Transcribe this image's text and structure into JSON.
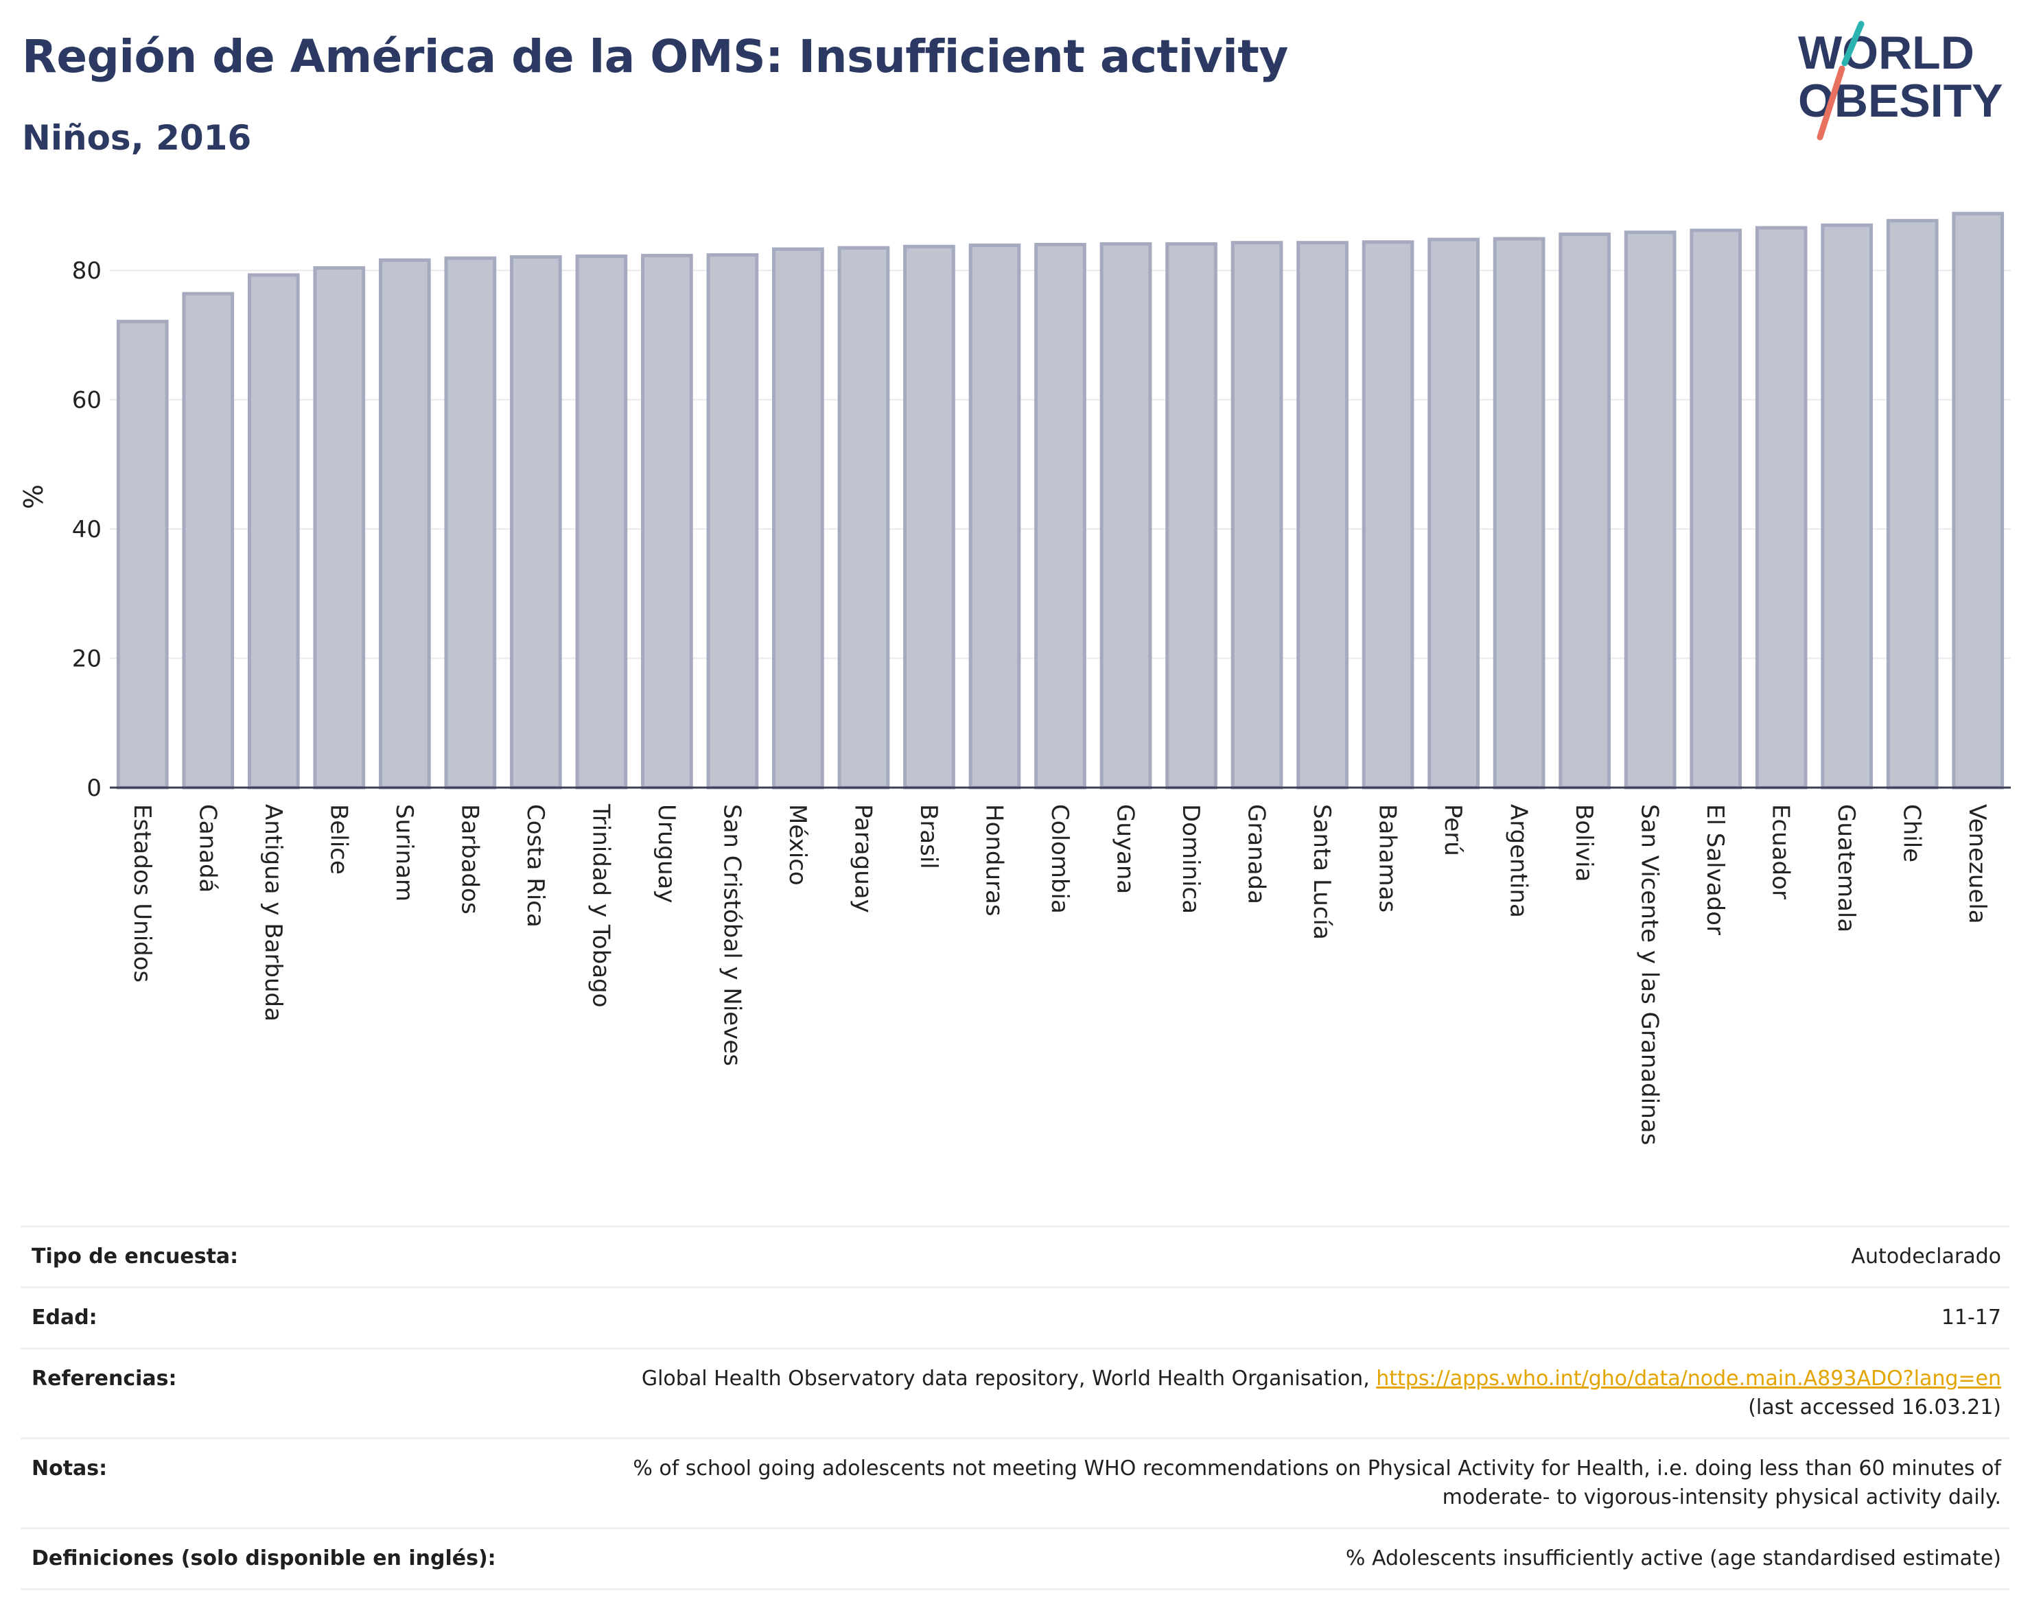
{
  "header": {
    "title": "Región de América de la OMS: Insufficient activity",
    "subtitle": "Niños, 2016"
  },
  "logo": {
    "line1": "WORLD",
    "line2": "OBESITY",
    "accent_colors": [
      "#2ab3b0",
      "#e8705e"
    ],
    "text_color": "#2c3a63"
  },
  "chart_data": {
    "type": "bar",
    "title": "",
    "xlabel": "",
    "ylabel": "%",
    "ylim": [
      0,
      90
    ],
    "yticks": [
      0,
      20,
      40,
      60,
      80
    ],
    "grid": true,
    "bar_color": "#c0c4d0",
    "bar_border_color": "#a5aabf",
    "categories": [
      "Estados Unidos",
      "Canadá",
      "Antigua y Barbuda",
      "Belice",
      "Surinam",
      "Barbados",
      "Costa Rica",
      "Trinidad y Tobago",
      "Uruguay",
      "San Cristóbal y Nieves",
      "México",
      "Paraguay",
      "Brasil",
      "Honduras",
      "Colombia",
      "Guyana",
      "Dominica",
      "Granada",
      "Santa Lucía",
      "Bahamas",
      "Perú",
      "Argentina",
      "Bolivia",
      "San Vicente y las Granadinas",
      "El Salvador",
      "Ecuador",
      "Guatemala",
      "Chile",
      "Venezuela"
    ],
    "values": [
      72.1,
      76.4,
      79.3,
      80.4,
      81.6,
      81.9,
      82.1,
      82.2,
      82.3,
      82.4,
      83.3,
      83.5,
      83.7,
      83.9,
      84.0,
      84.1,
      84.1,
      84.3,
      84.3,
      84.4,
      84.8,
      84.9,
      85.6,
      85.9,
      86.2,
      86.6,
      87.0,
      87.7,
      88.8
    ]
  },
  "meta": {
    "rows": [
      {
        "label": "Tipo de encuesta:",
        "value": "Autodeclarado"
      },
      {
        "label": "Edad:",
        "value": "11-17"
      },
      {
        "label": "Referencias:",
        "value_prefix": "Global Health Observatory data repository, World Health Organisation, ",
        "link": "https://apps.who.int/gho/data/node.main.A893ADO?lang=en",
        "value_suffix": "(last accessed 16.03.21)"
      },
      {
        "label": "Notas:",
        "value_line1": "% of school going adolescents not meeting WHO recommendations on Physical Activity for Health, i.e. doing less than 60 minutes of",
        "value_line2": "moderate- to vigorous-intensity physical activity daily."
      },
      {
        "label": "Definiciones (solo disponible en inglés):",
        "value": "% Adolescents insufficiently active (age standardised estimate)"
      }
    ]
  }
}
